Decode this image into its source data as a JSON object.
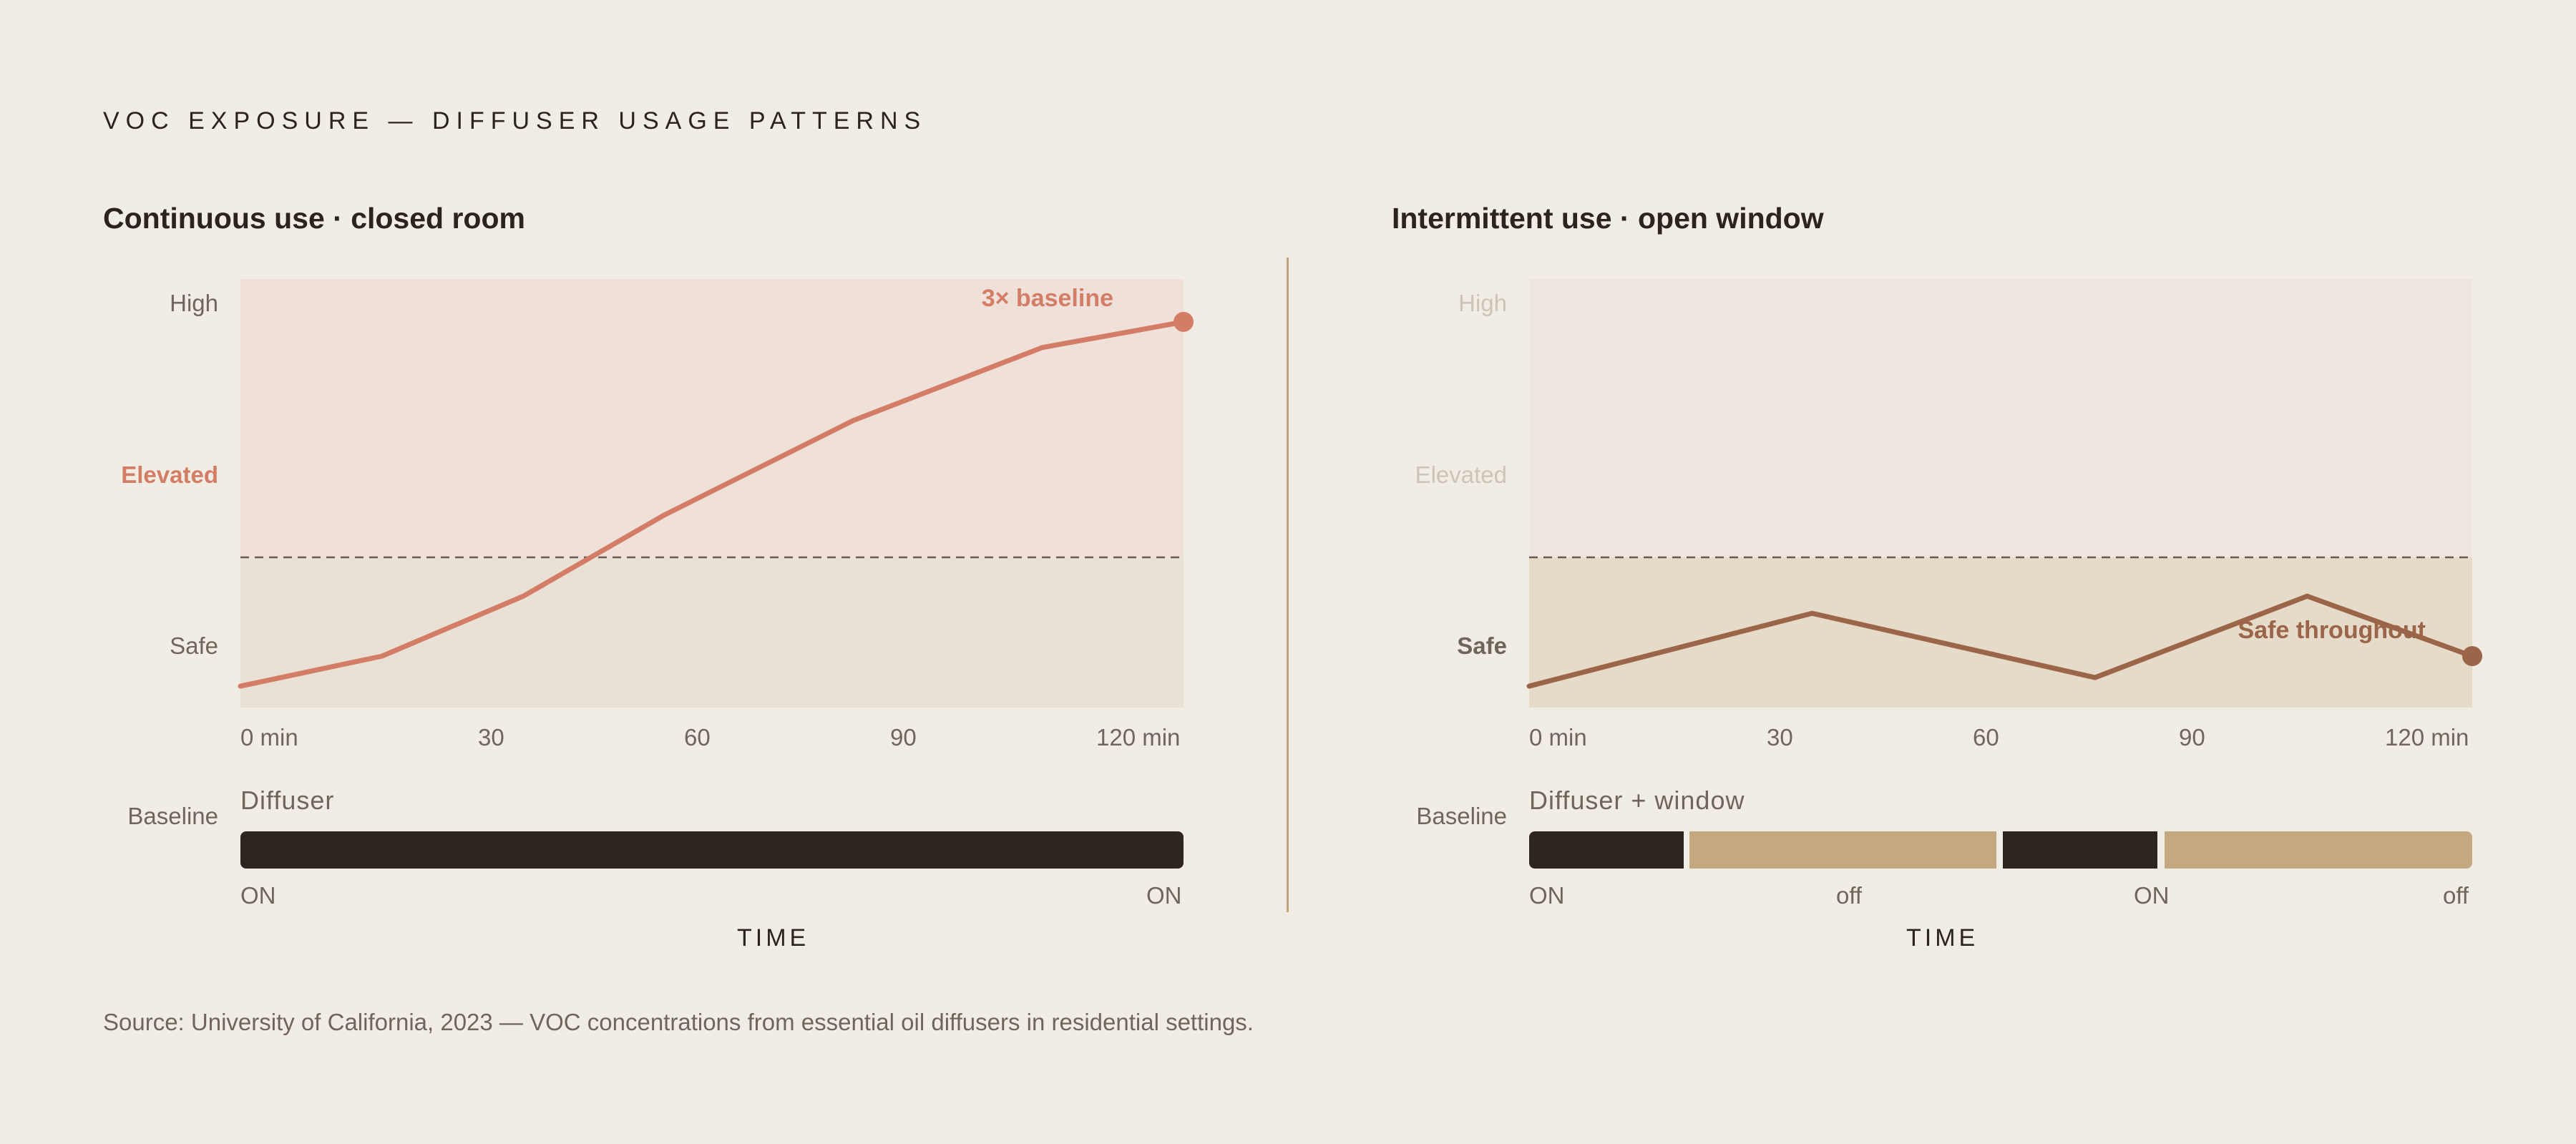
{
  "title": "VOC EXPOSURE — DIFFUSER USAGE PATTERNS",
  "source": "Source: University of California, 2023 — VOC concentrations from essential oil diffusers in residential settings.",
  "colors": {
    "background": "#f2ede4",
    "ink": "#2b231d",
    "muted": "#6f655c",
    "coral": "#d47d66",
    "brown": "#9a6548",
    "tan": "#c4a882",
    "elevated_zone_left": "#efe1da",
    "safe_zone_left": "#e9e1d5",
    "elevated_zone_right": "#efe6e0",
    "safe_zone_right": "#e6dac8"
  },
  "chart_data": [
    {
      "type": "line",
      "title": "Continuous use · closed room",
      "xlabel": "TIME",
      "ylabel": "",
      "x_ticks": [
        "0 min",
        "30",
        "60",
        "90",
        "120 min"
      ],
      "xlim": [
        0,
        120
      ],
      "y_levels": [
        "Safe",
        "Elevated",
        "High"
      ],
      "highlighted_level": "Elevated",
      "threshold_label": "",
      "series": [
        {
          "color": "#d47d66",
          "x": [
            0,
            18,
            36,
            54,
            78,
            102,
            120
          ],
          "y": [
            0.05,
            0.12,
            0.26,
            0.45,
            0.67,
            0.84,
            0.9
          ]
        }
      ],
      "annotation": "3× baseline",
      "diffuser": {
        "label": "Diffuser",
        "baseline_label": "Baseline",
        "segments": [
          {
            "state": "on",
            "start": 0,
            "end": 120
          }
        ],
        "state_labels": [
          "ON",
          "ON"
        ]
      }
    },
    {
      "type": "line",
      "title": "Intermittent use · open window",
      "xlabel": "TIME",
      "ylabel": "",
      "x_ticks": [
        "0 min",
        "30",
        "60",
        "90",
        "120 min"
      ],
      "xlim": [
        0,
        120
      ],
      "y_levels": [
        "Safe",
        "Elevated",
        "High"
      ],
      "highlighted_level": "Safe",
      "series": [
        {
          "color": "#9a6548",
          "x": [
            0,
            36,
            72,
            99,
            120
          ],
          "y": [
            0.05,
            0.22,
            0.07,
            0.26,
            0.12
          ]
        }
      ],
      "annotation": "Safe throughout",
      "diffuser": {
        "label": "Diffuser + window",
        "baseline_label": "Baseline",
        "segments": [
          {
            "state": "on",
            "start": 0,
            "end": 20
          },
          {
            "state": "off",
            "start": 20,
            "end": 60
          },
          {
            "state": "on",
            "start": 60,
            "end": 80
          },
          {
            "state": "off",
            "start": 80,
            "end": 120
          }
        ],
        "state_labels": [
          "ON",
          "off",
          "ON",
          "off"
        ]
      }
    }
  ]
}
